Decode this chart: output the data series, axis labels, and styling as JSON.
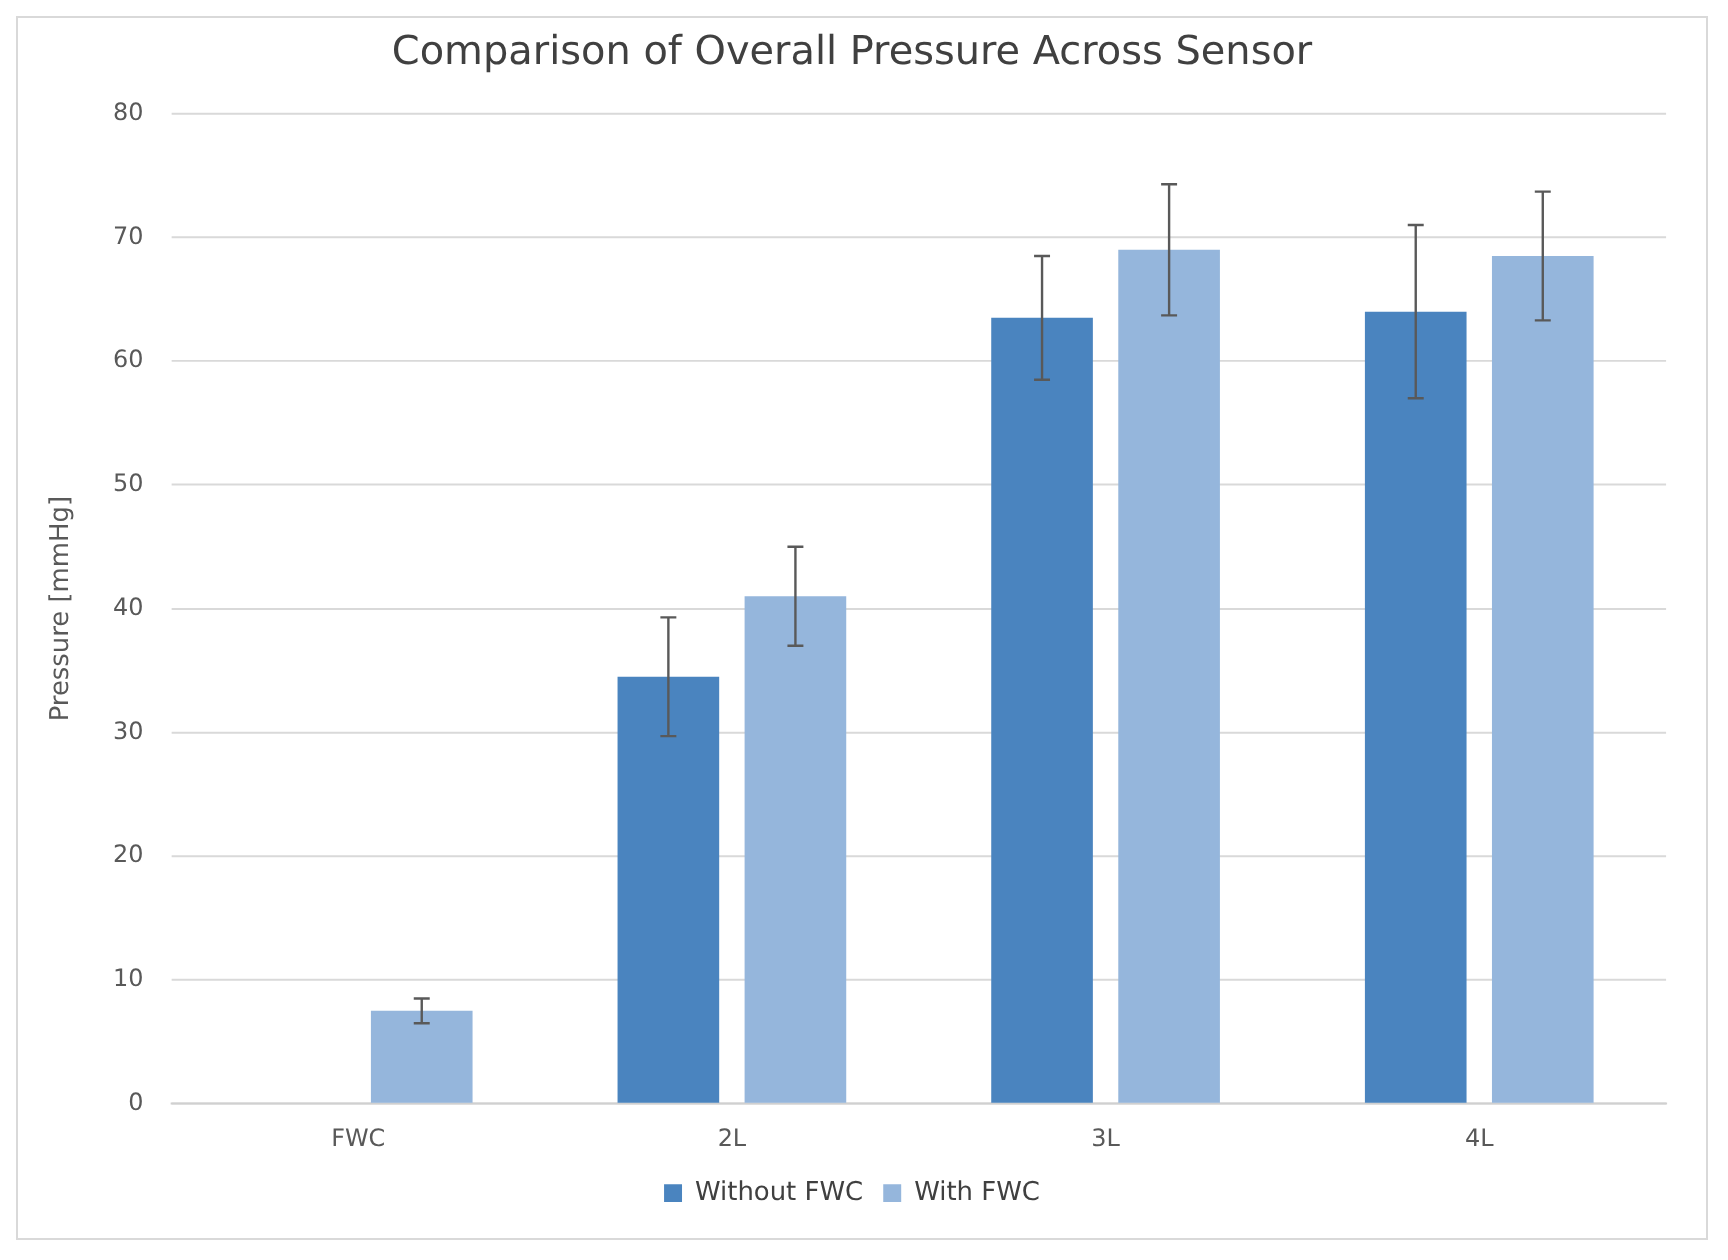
{
  "chart_data": {
    "type": "bar",
    "title": "Comparison of Overall Pressure Across Sensor",
    "ylabel": "Pressure [mmHg]",
    "categories": [
      "FWC",
      "2L",
      "3L",
      "4L"
    ],
    "series": [
      {
        "name": "Without FWC",
        "color": "#4a84bf",
        "values": [
          null,
          34.5,
          63.5,
          64
        ],
        "errors": [
          null,
          4.8,
          5,
          7
        ]
      },
      {
        "name": "With FWC",
        "color": "#95b6dc",
        "values": [
          7.5,
          41,
          69,
          68.5
        ],
        "errors": [
          1,
          4,
          5.3,
          5.2
        ]
      }
    ],
    "ylim": [
      0,
      80
    ],
    "yticks": [
      0,
      10,
      20,
      30,
      40,
      50,
      60,
      70,
      80
    ],
    "grid": "y",
    "legend": "bottom"
  }
}
